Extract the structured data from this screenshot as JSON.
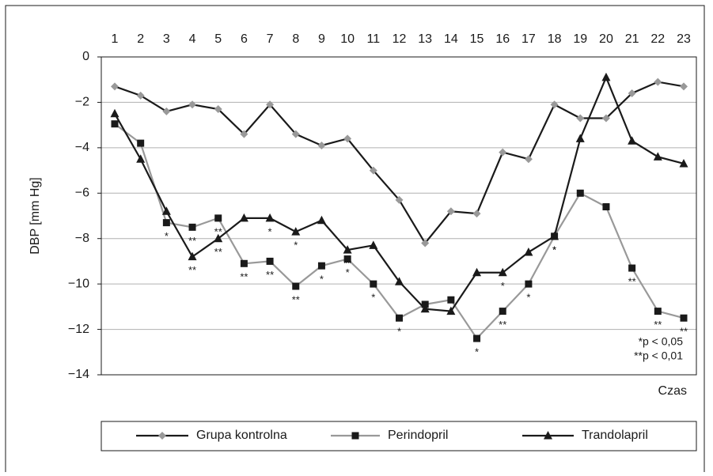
{
  "chart_data": {
    "type": "line",
    "categories": [
      1,
      2,
      3,
      4,
      5,
      6,
      7,
      8,
      9,
      10,
      11,
      12,
      13,
      14,
      15,
      16,
      17,
      18,
      19,
      20,
      21,
      22,
      23
    ],
    "y_label": "DBP [mm Hg]",
    "x_label": "Czas",
    "ylim": [
      -14,
      0
    ],
    "yticks": [
      {
        "value": -14,
        "label": "−14"
      },
      {
        "value": -12,
        "label": "−12"
      },
      {
        "value": -10,
        "label": "−10"
      },
      {
        "value": -8,
        "label": "−8"
      },
      {
        "value": -6,
        "label": "−6"
      },
      {
        "value": -4,
        "label": "−4"
      },
      {
        "value": -2,
        "label": "−2"
      },
      0
    ],
    "grid": true,
    "notes": [
      "*p < 0,05",
      "**p < 0,01"
    ],
    "series": [
      {
        "name": "Grupa kontrolna",
        "color": "#1a1a1a",
        "marker": "diamond",
        "marker_color": "#999999",
        "values": [
          -1.3,
          -1.7,
          -2.4,
          -2.1,
          -2.3,
          -3.4,
          -2.1,
          -3.4,
          -3.9,
          -3.6,
          -5.0,
          -6.3,
          -8.2,
          -6.8,
          -6.9,
          -4.2,
          -4.5,
          -2.1,
          -2.7,
          -2.7,
          -1.6,
          -1.1,
          -1.3
        ]
      },
      {
        "name": "Perindopril",
        "color": "#999999",
        "marker": "square",
        "marker_color": "#1a1a1a",
        "values": [
          -2.95,
          -3.8,
          -7.3,
          -7.5,
          -7.1,
          -9.1,
          -9.0,
          -10.1,
          -9.2,
          -8.9,
          -10.0,
          -11.5,
          -10.9,
          -10.7,
          -12.4,
          -11.2,
          -10.0,
          -7.9,
          -6.0,
          -6.6,
          -9.3,
          -11.2,
          -11.5
        ],
        "significance": [
          null,
          null,
          "*",
          "**",
          "**",
          "**",
          "**",
          "**",
          "*",
          "*",
          "*",
          "*",
          null,
          null,
          "*",
          "**",
          "*",
          "*",
          null,
          null,
          "**",
          "**",
          "**"
        ]
      },
      {
        "name": "Trandolapril",
        "color": "#1a1a1a",
        "marker": "triangle",
        "marker_color": "#1a1a1a",
        "values": [
          -2.5,
          -4.5,
          -6.8,
          -8.8,
          -8.0,
          -7.1,
          -7.1,
          -7.7,
          -7.2,
          -8.5,
          -8.3,
          -9.9,
          -11.1,
          -11.2,
          -9.5,
          -9.5,
          -8.6,
          -7.9,
          -3.6,
          -0.9,
          -3.7,
          -4.4,
          -4.7
        ],
        "significance": [
          null,
          null,
          "*",
          "**",
          "**",
          null,
          "*",
          "*",
          null,
          "**",
          null,
          null,
          null,
          null,
          null,
          "*",
          null,
          "*",
          null,
          null,
          null,
          null,
          null
        ]
      }
    ]
  }
}
